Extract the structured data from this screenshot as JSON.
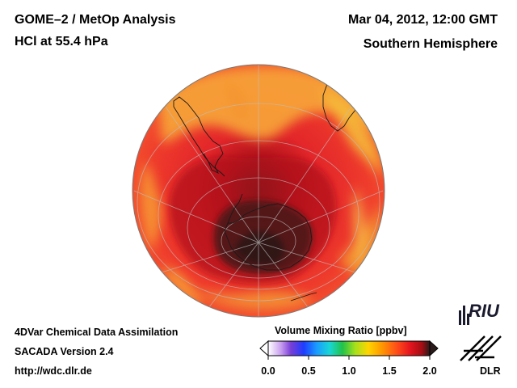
{
  "header": {
    "title_left_1": "GOME–2 / MetOp Analysis",
    "title_left_2": "HCl at 55.4 hPa",
    "title_right_1": "Mar 04, 2012, 12:00 GMT",
    "title_right_2": "Southern Hemisphere"
  },
  "footer": {
    "line1": "4DVar Chemical Data Assimilation",
    "line2": "SACADA Version 2.4",
    "line3": "http://wdc.dlr.de"
  },
  "colorbar": {
    "title": "Volume Mixing Ratio [ppbv]",
    "ticks": [
      "0.0",
      "0.5",
      "1.0",
      "1.5",
      "2.0"
    ],
    "range": [
      0.0,
      2.0
    ],
    "colors": [
      "#ffffff",
      "#c79cf0",
      "#7a3ed6",
      "#1f3cff",
      "#1a9bff",
      "#19d6d6",
      "#22c24a",
      "#a8e01c",
      "#ffd400",
      "#ff9a00",
      "#ff4a1a",
      "#e3141e",
      "#a60d14",
      "#2a1a1a"
    ]
  },
  "logos": {
    "riu": "RIU",
    "dlr": "DLR"
  },
  "map": {
    "projection": "orthographic-south-polar",
    "background_color": "#e8282a",
    "ocean_border_color": "#888888"
  }
}
